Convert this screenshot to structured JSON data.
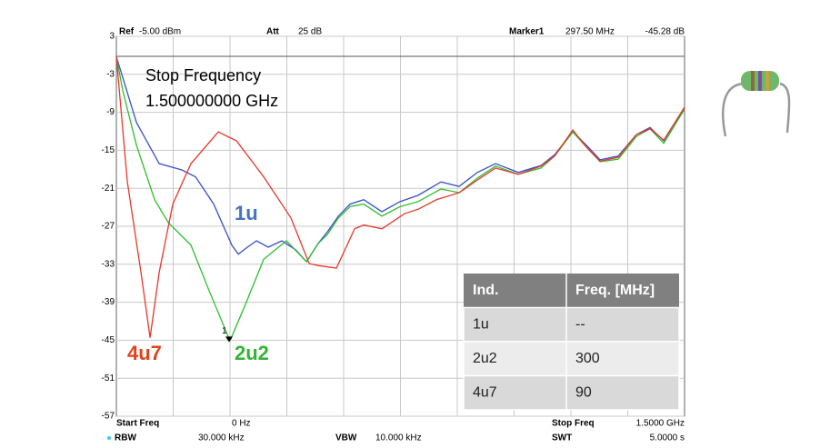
{
  "chart_data": {
    "type": "line",
    "header": {
      "ref_label": "Ref",
      "ref_value": "-5.00 dBm",
      "att_label": "Att",
      "att_value": "25 dB",
      "marker_label": "Marker1"
    },
    "footer": {
      "start_label": "Start Freq",
      "start_value": "0 Hz",
      "stop_label": "Stop Freq",
      "stop_value": "1.5000 GHz",
      "rbw_label": "RBW",
      "rbw_value": "30.000 kHz",
      "vbw_label": "VBW",
      "vbw_value": "10.000 kHz",
      "swt_label": "SWT",
      "swt_value": "5.0000 s"
    },
    "annotation": [
      "Stop Frequency",
      "1.500000000 GHz"
    ],
    "marker": {
      "name": "1",
      "x": 297.5,
      "y": -45.28,
      "x_label": "297.50 MHz",
      "y_label": "-45.28 dB"
    },
    "xlim": [
      0,
      1500
    ],
    "ylim": [
      -57,
      3
    ],
    "yticks": [
      3,
      -3,
      -9,
      -15,
      -21,
      -27,
      -33,
      -39,
      -45,
      -51,
      -57
    ],
    "grid": true,
    "series": [
      {
        "name": "1u",
        "color": "#3a50c8",
        "label_color": "#4472c4",
        "x": [
          0,
          53,
          113,
          173,
          209,
          257,
          305,
          322,
          346,
          370,
          401,
          437,
          473,
          502,
          533,
          557,
          586,
          617,
          653,
          701,
          749,
          797,
          857,
          905,
          953,
          1001,
          1061,
          1121,
          1157,
          1205,
          1241,
          1277,
          1325,
          1373,
          1409,
          1445,
          1500
        ],
        "values": [
          -0.2,
          -10.6,
          -17.1,
          -18.1,
          -19.2,
          -23.5,
          -30.0,
          -31.4,
          -30.3,
          -29.3,
          -30.3,
          -29.3,
          -30.7,
          -32.6,
          -29.7,
          -27.9,
          -25.4,
          -23.5,
          -22.8,
          -24.7,
          -23.1,
          -22.1,
          -20.0,
          -20.7,
          -18.5,
          -17.1,
          -18.5,
          -17.4,
          -15.7,
          -12.1,
          -14.2,
          -16.5,
          -15.9,
          -12.5,
          -11.4,
          -13.5,
          -8.2
        ]
      },
      {
        "name": "2u2",
        "color": "#2ebd2e",
        "label_color": "#33b533",
        "x": [
          0,
          17,
          53,
          101,
          137,
          197,
          245,
          300,
          341,
          389,
          449,
          502,
          533,
          557,
          586,
          617,
          653,
          701,
          749,
          797,
          857,
          905,
          953,
          1001,
          1061,
          1121,
          1157,
          1205,
          1241,
          1277,
          1325,
          1373,
          1409,
          1445,
          1500
        ],
        "values": [
          -0.2,
          -5.6,
          -14.2,
          -22.8,
          -26.4,
          -30.0,
          -37.2,
          -45.1,
          -39.3,
          -32.2,
          -29.3,
          -32.6,
          -29.7,
          -28.3,
          -25.7,
          -23.9,
          -23.5,
          -25.4,
          -23.9,
          -23.1,
          -21.1,
          -21.7,
          -19.4,
          -17.5,
          -18.8,
          -17.8,
          -15.9,
          -12.1,
          -14.5,
          -16.8,
          -16.4,
          -12.8,
          -11.6,
          -13.9,
          -8.5
        ]
      },
      {
        "name": "4u7",
        "color": "#e8372a",
        "label_color": "#e0441b",
        "x": [
          0,
          29,
          65,
          89,
          113,
          149,
          197,
          269,
          317,
          389,
          461,
          509,
          533,
          581,
          629,
          653,
          701,
          761,
          797,
          845,
          905,
          953,
          1001,
          1061,
          1121,
          1157,
          1205,
          1241,
          1277,
          1325,
          1373,
          1409,
          1445,
          1500
        ],
        "values": [
          -0.2,
          -20.0,
          -34.3,
          -44.6,
          -34.3,
          -23.5,
          -17.1,
          -12.1,
          -13.5,
          -19.2,
          -25.7,
          -32.9,
          -33.2,
          -33.6,
          -27.4,
          -26.8,
          -27.4,
          -25.0,
          -24.3,
          -22.8,
          -21.7,
          -19.7,
          -17.8,
          -18.8,
          -17.5,
          -15.9,
          -11.8,
          -14.5,
          -16.7,
          -16.1,
          -12.5,
          -11.6,
          -13.4,
          -8.2
        ]
      }
    ],
    "table": {
      "header": [
        "Ind.",
        "Freq. [MHz]"
      ],
      "rows": [
        [
          "1u",
          "--"
        ],
        [
          "2u2",
          "300"
        ],
        [
          "4u7",
          "90"
        ]
      ]
    }
  }
}
